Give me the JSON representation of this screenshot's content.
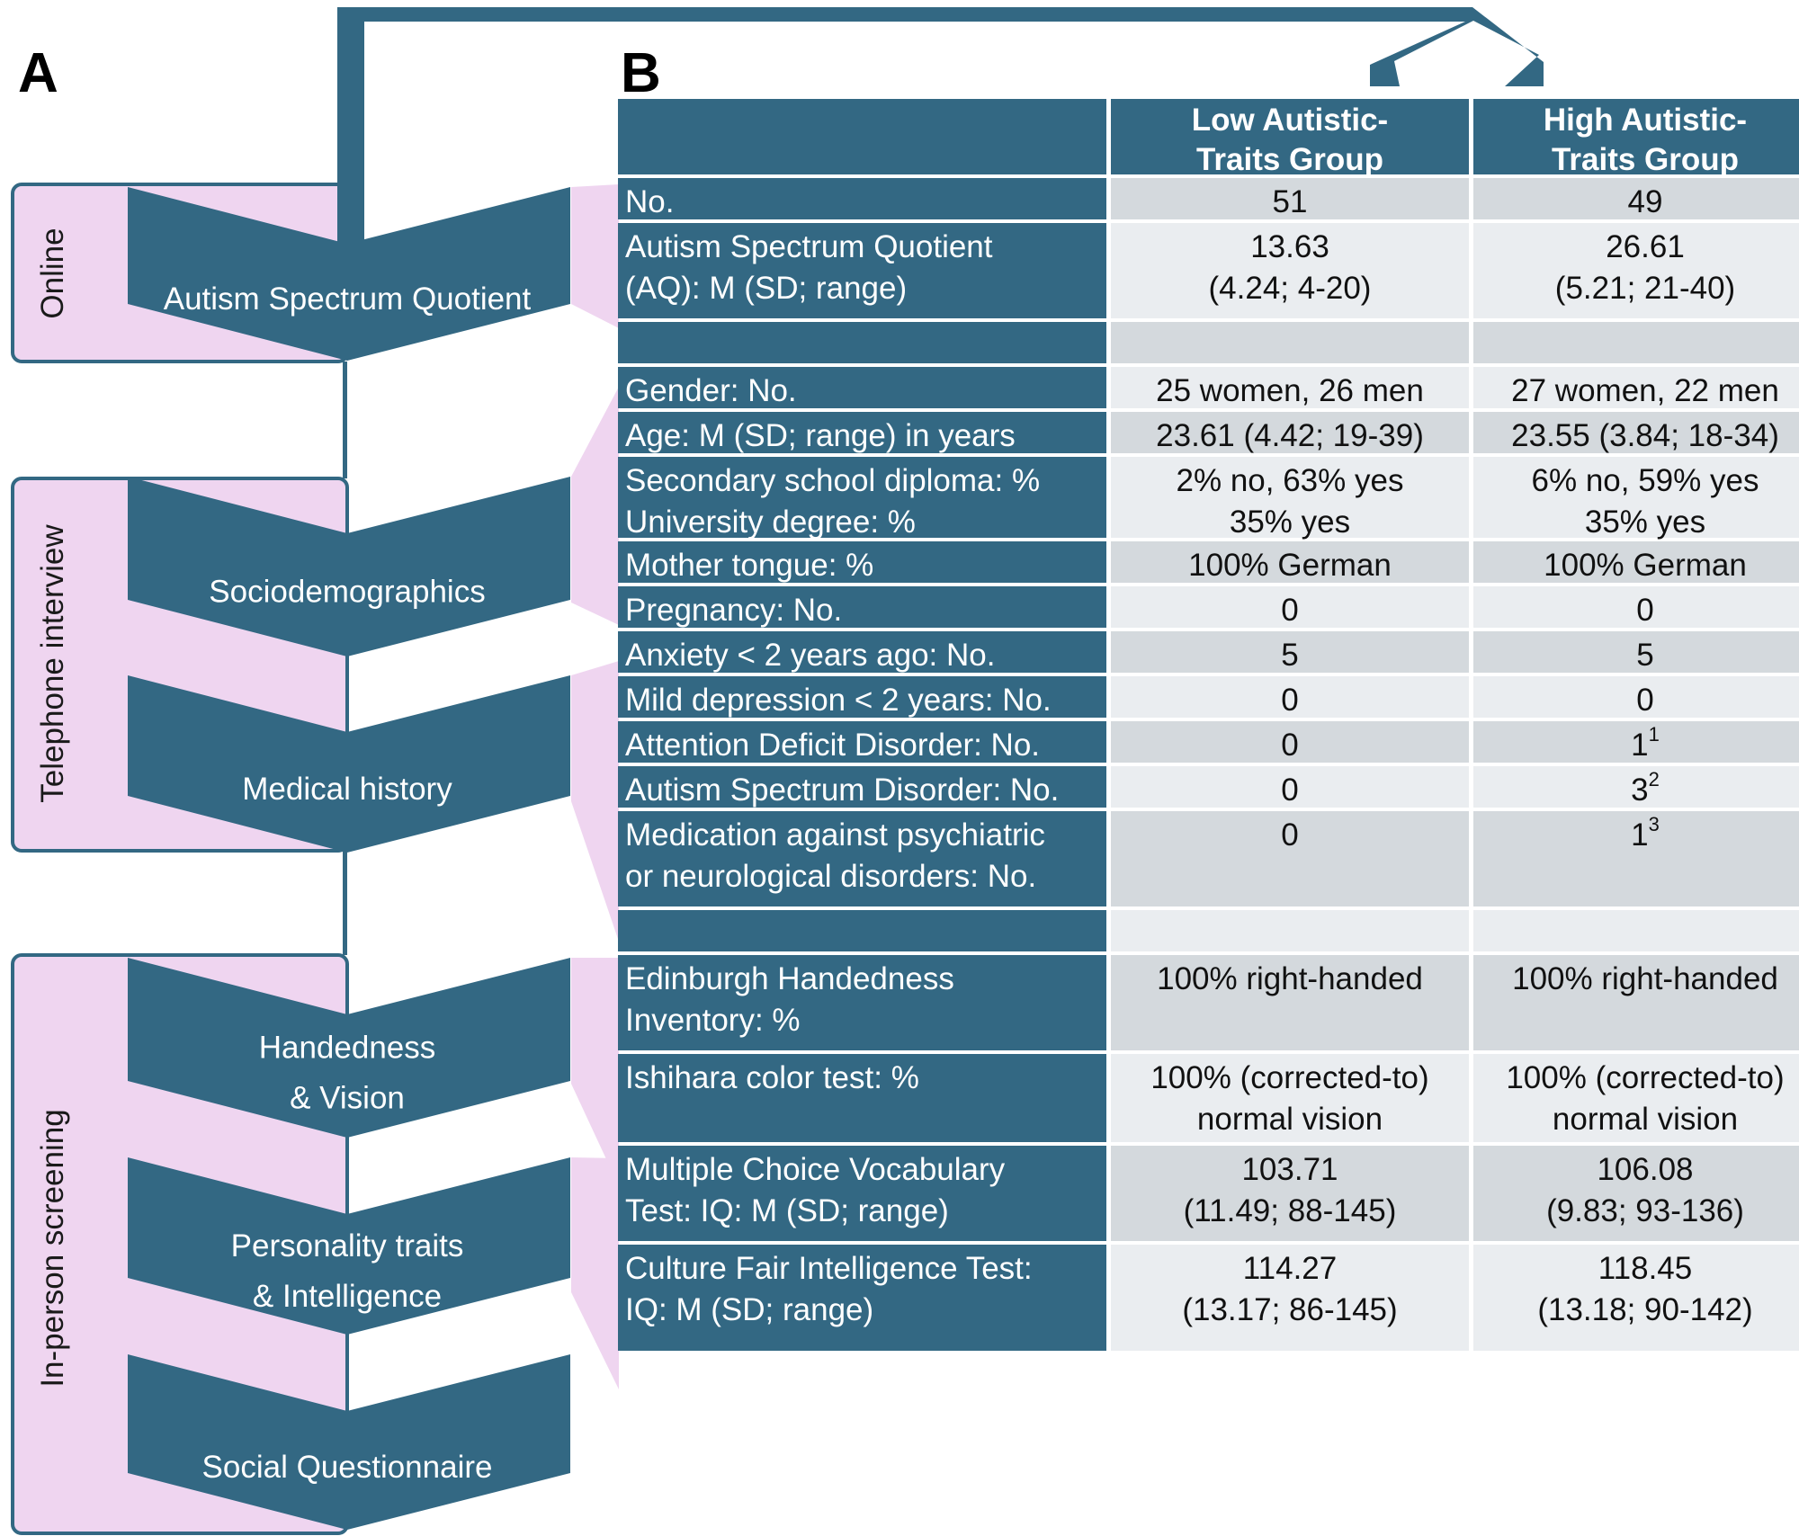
{
  "panel_a": {
    "letter": "A",
    "phases": [
      {
        "label": "Online",
        "steps": [
          [
            "Autism Spectrum Quotient"
          ]
        ]
      },
      {
        "label": "Telephone interview",
        "steps": [
          [
            "Sociodemographics"
          ],
          [
            "Medical history"
          ]
        ]
      },
      {
        "label": "In-person screening",
        "steps": [
          [
            "Handedness",
            "& Vision"
          ],
          [
            "Personality traits",
            "& Intelligence"
          ],
          [
            "Social Questionnaire"
          ]
        ]
      }
    ]
  },
  "panel_b": {
    "letter": "B",
    "columns": [
      "Low Autistic-\nTraits Group",
      "High Autistic-\nTraits Group"
    ],
    "rows": [
      {
        "label": "No.",
        "low": "51",
        "high": "49"
      },
      {
        "label": "Autism Spectrum Quotient\n(AQ): M (SD; range)",
        "low": "13.63\n(4.24; 4-20)",
        "high": "26.61\n(5.21; 21-40)"
      },
      {
        "label": "",
        "low": "",
        "high": ""
      },
      {
        "label": "Gender: No.",
        "low": "25 women, 26 men",
        "high": "27 women, 22 men"
      },
      {
        "label": "Age: M (SD; range) in years",
        "low": "23.61 (4.42; 19-39)",
        "high": "23.55 (3.84; 18-34)"
      },
      {
        "label": "Secondary school diploma: %\nUniversity degree: %",
        "low": "2% no, 63% yes\n35% yes",
        "high": "6% no, 59% yes\n35% yes"
      },
      {
        "label": "Mother tongue: %",
        "low": "100% German",
        "high": "100% German"
      },
      {
        "label": "Pregnancy: No.",
        "low": "0",
        "high": "0"
      },
      {
        "label": "Anxiety < 2 years ago: No.",
        "low": "5",
        "high": "5"
      },
      {
        "label": "Mild depression < 2 years: No.",
        "low": "0",
        "high": "0"
      },
      {
        "label": "Attention Deficit Disorder: No.",
        "low": "0",
        "high": "1",
        "high_note": "1"
      },
      {
        "label": "Autism Spectrum Disorder: No.",
        "low": "0",
        "high": "3",
        "high_note": "2"
      },
      {
        "label": "Medication against psychiatric\nor neurological disorders: No.",
        "low": "0",
        "high": "1",
        "high_note": "3"
      },
      {
        "label": "",
        "low": "",
        "high": ""
      },
      {
        "label": "Edinburgh Handedness\nInventory: %",
        "low": "100% right-handed",
        "high": "100% right-handed"
      },
      {
        "label": "Ishihara color test: %",
        "low": "100% (corrected-to)\nnormal vision",
        "high": "100% (corrected-to)\nnormal vision"
      },
      {
        "label": "Multiple Choice Vocabulary\nTest: IQ: M (SD; range)",
        "low": "103.71\n(11.49; 88-145)",
        "high": "106.08\n(9.83; 93-136)"
      },
      {
        "label": "Culture Fair Intelligence Test:\nIQ: M (SD; range)",
        "low": "114.27\n(13.17; 86-145)",
        "high": "118.45\n(13.18; 90-142)"
      }
    ]
  },
  "colors": {
    "blue": "#336883",
    "pink": "#efd5f0",
    "value_light": "#eaedf0",
    "value_dark": "#d4d9dd"
  }
}
